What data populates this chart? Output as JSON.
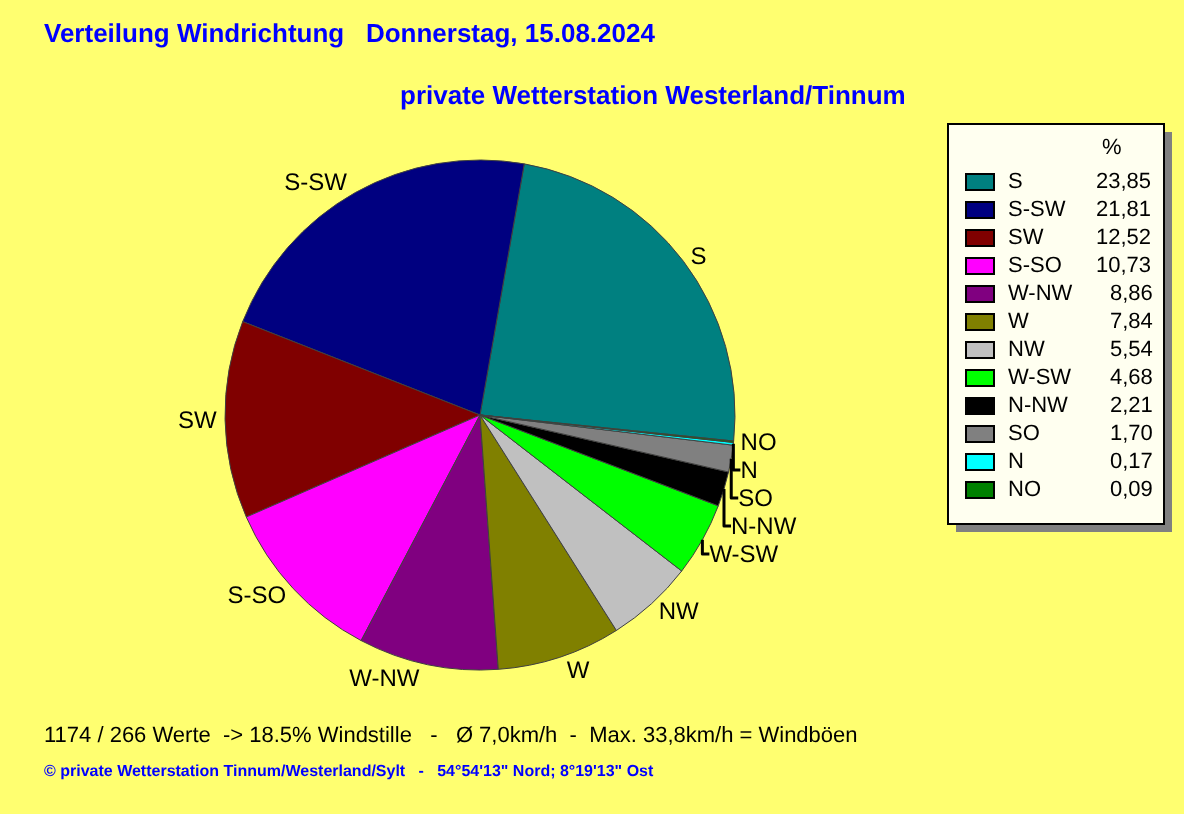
{
  "chart_data": {
    "type": "pie",
    "title": "Verteilung Windrichtung   Donnerstag, 15.08.2024",
    "subtitle": "private Wetterstation Westerland/Tinnum",
    "categories": [
      "S",
      "S-SW",
      "SW",
      "S-SO",
      "W-NW",
      "W",
      "NW",
      "W-SW",
      "N-NW",
      "SO",
      "N",
      "NO"
    ],
    "values": [
      23.85,
      21.81,
      12.52,
      10.73,
      8.86,
      7.84,
      5.54,
      4.68,
      2.21,
      1.7,
      0.17,
      0.09
    ],
    "value_labels": [
      "23,85",
      "21,81",
      "12,52",
      "10,73",
      "8,86",
      "7,84",
      "5,54",
      "4,68",
      "2,21",
      "1,70",
      "0,17",
      "0,09"
    ],
    "colors": [
      "#008080",
      "#000080",
      "#800000",
      "#ff00ff",
      "#800080",
      "#808000",
      "#c0c0c0",
      "#00ff00",
      "#000000",
      "#808080",
      "#00ffff",
      "#008000"
    ],
    "legend_title": "%",
    "legend": "right",
    "annotations": [
      "1174 / 266 Werte  -> 18.5% Windstille   -   Ø 7,0km/h  -  Max. 33,8km/h = Windböen",
      "© private Wetterstation Tinnum/Westerland/Sylt   -   54°54'13\" Nord; 8°19'13\" Ost"
    ]
  }
}
